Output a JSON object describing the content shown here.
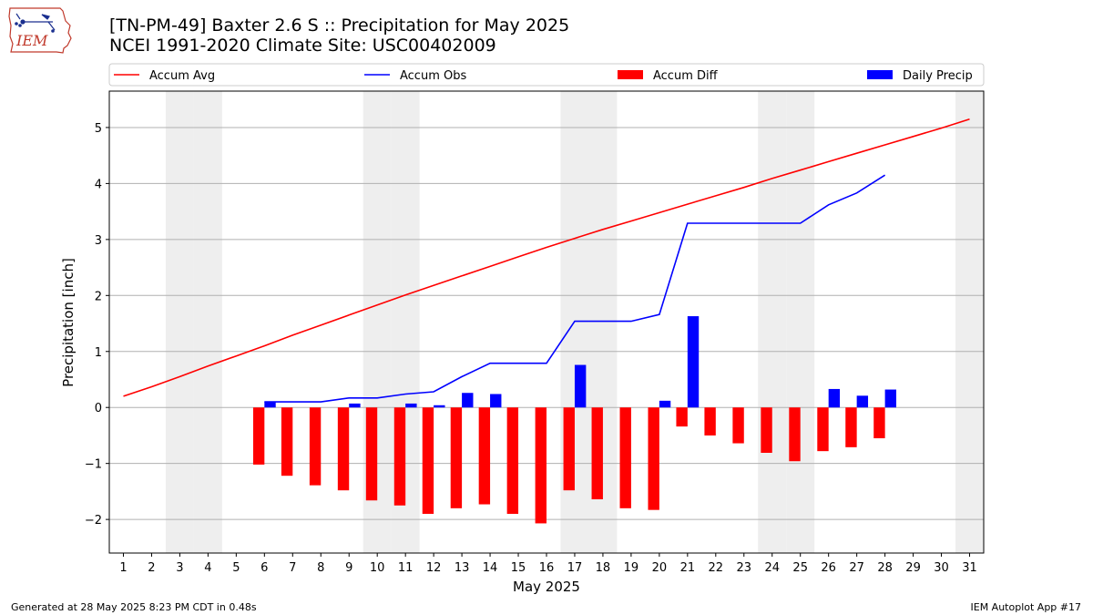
{
  "header": {
    "title_line1": "[TN-PM-49] Baxter 2.6 S :: Precipitation for May 2025",
    "title_line2": "NCEI 1991-2020 Climate Site: USC00402009",
    "logo_text": "IEM"
  },
  "footer": {
    "left": "Generated at 28 May 2025 8:23 PM CDT in 0.48s",
    "right": "IEM Autoplot App #17"
  },
  "chart_data": {
    "type": "bar",
    "xlabel": "May 2025",
    "ylabel": "Precipitation [inch]",
    "xlim": [
      0.5,
      31.5
    ],
    "ylim": [
      -2.6,
      5.65
    ],
    "x_ticks": [
      1,
      2,
      3,
      4,
      5,
      6,
      7,
      8,
      9,
      10,
      11,
      12,
      13,
      14,
      15,
      16,
      17,
      18,
      19,
      20,
      21,
      22,
      23,
      24,
      25,
      26,
      27,
      28,
      29,
      30,
      31
    ],
    "y_ticks": [
      -2,
      -1,
      0,
      1,
      2,
      3,
      4,
      5
    ],
    "y_tick_labels": [
      "−2",
      "−1",
      "0",
      "1",
      "2",
      "3",
      "4",
      "5"
    ],
    "grid": "horizontal",
    "weekend_shading_days": [
      3,
      4,
      10,
      11,
      17,
      18,
      24,
      25,
      31
    ],
    "legend_position": "top",
    "series": [
      {
        "name": "Accum Avg",
        "kind": "line",
        "color": "#ff0000",
        "x": [
          1,
          2,
          3,
          4,
          5,
          6,
          7,
          8,
          9,
          10,
          11,
          12,
          13,
          14,
          15,
          16,
          17,
          18,
          19,
          20,
          21,
          22,
          23,
          24,
          25,
          26,
          27,
          28,
          29,
          30,
          31
        ],
        "values": [
          0.2,
          0.37,
          0.55,
          0.74,
          0.92,
          1.1,
          1.29,
          1.47,
          1.65,
          1.83,
          2.01,
          2.18,
          2.35,
          2.52,
          2.69,
          2.86,
          3.02,
          3.18,
          3.33,
          3.48,
          3.63,
          3.78,
          3.93,
          4.09,
          4.24,
          4.39,
          4.54,
          4.69,
          4.84,
          4.99,
          5.15
        ]
      },
      {
        "name": "Accum Obs",
        "kind": "line",
        "color": "#0000ff",
        "x": [
          6,
          7,
          8,
          9,
          10,
          11,
          12,
          13,
          14,
          15,
          16,
          17,
          18,
          19,
          20,
          21,
          22,
          23,
          24,
          25,
          26,
          27,
          28
        ],
        "values": [
          0.1,
          0.1,
          0.1,
          0.17,
          0.17,
          0.24,
          0.28,
          0.55,
          0.79,
          0.79,
          0.79,
          1.54,
          1.54,
          1.54,
          1.66,
          3.29,
          3.29,
          3.29,
          3.29,
          3.29,
          3.62,
          3.83,
          4.15
        ]
      },
      {
        "name": "Accum Diff",
        "kind": "bar",
        "color": "#ff0000",
        "x": [
          6,
          7,
          8,
          9,
          10,
          11,
          12,
          13,
          14,
          15,
          16,
          17,
          18,
          19,
          20,
          21,
          22,
          23,
          24,
          25,
          26,
          27,
          28
        ],
        "values": [
          -1.02,
          -1.22,
          -1.39,
          -1.48,
          -1.66,
          -1.75,
          -1.9,
          -1.8,
          -1.73,
          -1.9,
          -2.07,
          -1.48,
          -1.64,
          -1.8,
          -1.83,
          -0.34,
          -0.5,
          -0.64,
          -0.81,
          -0.96,
          -0.78,
          -0.71,
          -0.55
        ]
      },
      {
        "name": "Daily Precip",
        "kind": "bar",
        "color": "#0000ff",
        "x": [
          6,
          9,
          11,
          12,
          13,
          14,
          17,
          20,
          21,
          26,
          27,
          28
        ],
        "values": [
          0.1,
          0.07,
          0.07,
          0.04,
          0.26,
          0.24,
          0.76,
          0.12,
          1.63,
          0.33,
          0.21,
          0.32
        ]
      }
    ]
  }
}
